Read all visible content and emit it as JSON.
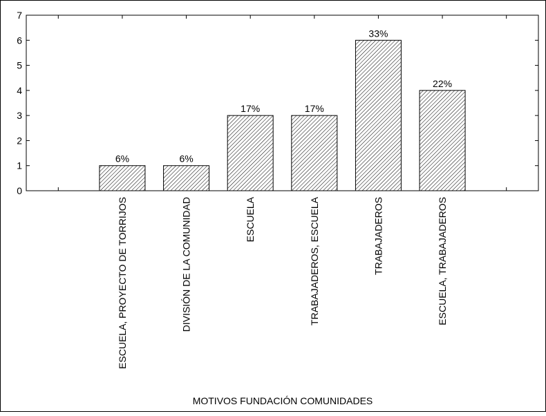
{
  "chart_data": {
    "type": "bar",
    "title": "",
    "xlabel": "MOTIVOS FUNDACIÓN COMUNIDADES",
    "ylabel": "",
    "ylim": [
      0,
      7
    ],
    "yticks": [
      "0",
      "1",
      "2",
      "3",
      "4",
      "5",
      "6",
      "7"
    ],
    "categories": [
      "",
      "ESCUELA, PROYECTO DE TORRIJOS",
      "DIVISIÓN DE LA COMUNIDAD",
      "ESCUELA",
      "TRABAJADEROS, ESCUELA",
      "TRABAJADEROS",
      "ESCUELA, TRABAJADEROS",
      ""
    ],
    "values": [
      0,
      1,
      1,
      3,
      3,
      6,
      4,
      0
    ],
    "data_labels": [
      "",
      "6%",
      "6%",
      "17%",
      "17%",
      "33%",
      "22%",
      ""
    ],
    "bar_fill": "hatched",
    "grid": false
  }
}
